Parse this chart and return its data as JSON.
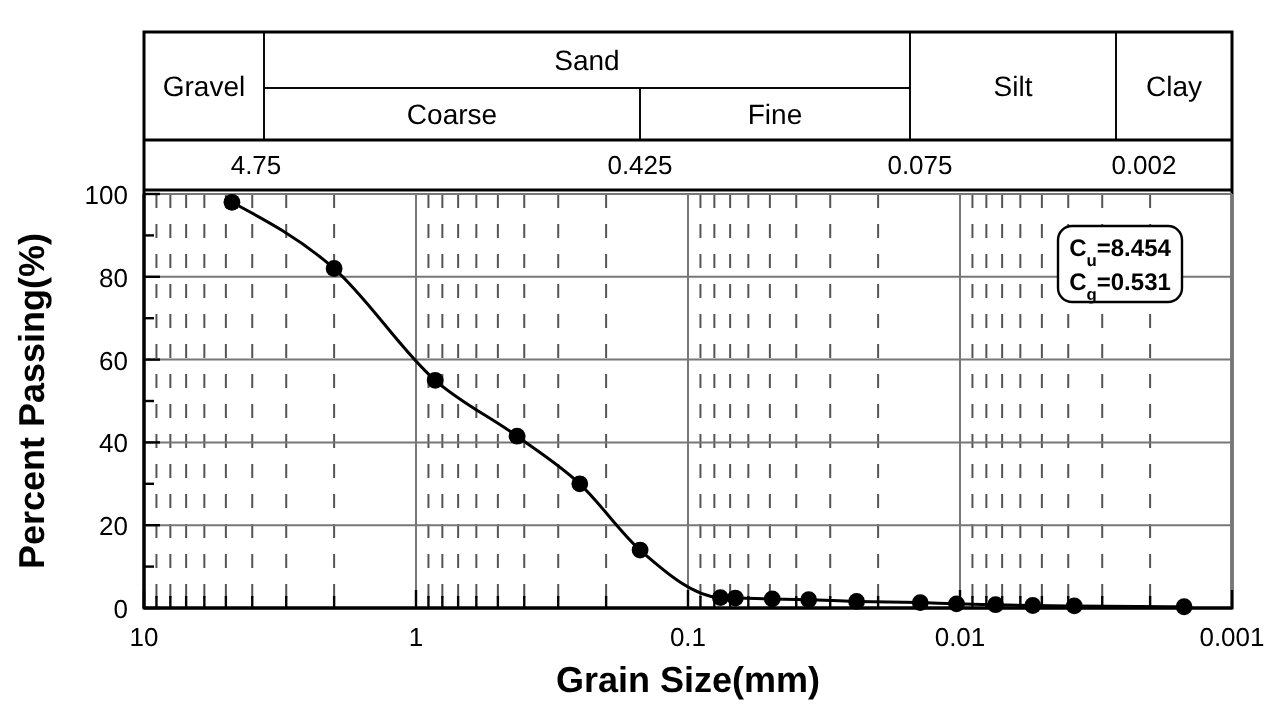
{
  "chart_data": {
    "type": "line",
    "xlabel": "Grain Size(mm)",
    "ylabel": "Percent Passing(%)",
    "x": [
      4.75,
      2.0,
      0.85,
      0.425,
      0.25,
      0.15,
      0.076,
      0.067,
      0.049,
      0.036,
      0.024,
      0.014,
      0.0103,
      0.0074,
      0.0054,
      0.0038,
      0.0015
    ],
    "series": [
      {
        "color": "#000000",
        "values": [
          98,
          82,
          55,
          41.5,
          30,
          14,
          2.5,
          2.4,
          2.2,
          2.0,
          1.6,
          1.3,
          1.0,
          0.8,
          0.6,
          0.5,
          0.3
        ]
      }
    ],
    "log": "x",
    "xlim": [
      10,
      0.001
    ],
    "xticks": [
      10,
      {
        "value": 9,
        "label": null
      },
      {
        "value": 8,
        "label": null
      },
      {
        "value": 7,
        "label": null
      },
      {
        "value": 6,
        "label": null
      },
      {
        "value": 5,
        "label": null
      },
      {
        "value": 4,
        "label": null
      },
      {
        "value": 3,
        "label": null
      },
      {
        "value": 2,
        "label": null
      },
      1,
      {
        "value": 0.9,
        "label": null
      },
      {
        "value": 0.8,
        "label": null
      },
      {
        "value": 0.7,
        "label": null
      },
      {
        "value": 0.6,
        "label": null
      },
      {
        "value": 0.5,
        "label": null
      },
      {
        "value": 0.4,
        "label": null
      },
      {
        "value": 0.3,
        "label": null
      },
      {
        "value": 0.2,
        "label": null
      },
      0.1,
      {
        "value": 0.09,
        "label": null
      },
      {
        "value": 0.08,
        "label": null
      },
      {
        "value": 0.07,
        "label": null
      },
      {
        "value": 0.06,
        "label": null
      },
      {
        "value": 0.05,
        "label": null
      },
      {
        "value": 0.04,
        "label": null
      },
      {
        "value": 0.03,
        "label": null
      },
      {
        "value": 0.02,
        "label": null
      },
      0.01,
      {
        "value": 0.009,
        "label": null
      },
      {
        "value": 0.008,
        "label": null
      },
      {
        "value": 0.007,
        "label": null
      },
      {
        "value": 0.006,
        "label": null
      },
      {
        "value": 0.005,
        "label": null
      },
      {
        "value": 0.004,
        "label": null
      },
      {
        "value": 0.003,
        "label": null
      },
      {
        "value": 0.002,
        "label": null
      },
      0.001
    ],
    "ylim": [
      0,
      100
    ],
    "yticks": [
      0,
      {
        "value": 10,
        "label": null
      },
      20,
      {
        "value": 30,
        "label": null
      },
      40,
      {
        "value": 50,
        "label": null
      },
      60,
      {
        "value": 70,
        "label": null
      },
      80,
      {
        "value": 90,
        "label": null
      },
      100
    ],
    "grid": true,
    "marker": "circle",
    "line_style": "solid",
    "annotations": [
      "Gravel",
      "Sand",
      "Coarse",
      "Fine",
      "Silt",
      "Clay",
      "4.75",
      "0.425",
      "0.075",
      "0.002",
      "C$_{u}$=8.454",
      "C$_{g}$=0.531"
    ]
  }
}
